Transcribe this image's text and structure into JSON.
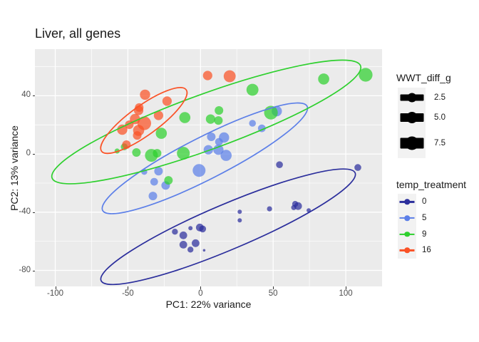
{
  "title": "Liver, all genes",
  "panel": {
    "bg": "#EBEBEB",
    "grid_color": "#FFFFFF"
  },
  "axes": {
    "x": {
      "title": "PC1: 22% variance",
      "tick_labels": [
        "-100",
        "-50",
        "0",
        "50",
        "100"
      ],
      "tick_values": [
        -100,
        -50,
        0,
        50,
        100
      ],
      "minor_values": [
        -75,
        -25,
        25,
        75
      ]
    },
    "y": {
      "title": "PC2: 13% variance",
      "tick_labels": [
        "-80",
        "-40",
        "0",
        "40"
      ],
      "tick_values": [
        -80,
        -40,
        0,
        40
      ],
      "minor_values": [
        -60,
        -20,
        20,
        60
      ]
    }
  },
  "legends": {
    "size": {
      "title": "WWT_diff_g",
      "entries": [
        {
          "label": "2.5",
          "value": 2.5
        },
        {
          "label": "5.0",
          "value": 5.0
        },
        {
          "label": "7.5",
          "value": 7.5
        }
      ]
    },
    "color": {
      "title": "temp_treatment",
      "entries": [
        {
          "label": "0",
          "color": "#2B2E9C"
        },
        {
          "label": "5",
          "color": "#5C7FE8"
        },
        {
          "label": "9",
          "color": "#2ED02E"
        },
        {
          "label": "16",
          "color": "#FA5226"
        }
      ]
    }
  },
  "chart_data": {
    "type": "scatter",
    "title": "Liver, all genes",
    "xlabel": "PC1: 22% variance",
    "ylabel": "PC2: 13% variance",
    "xlim": [
      -114,
      125
    ],
    "ylim": [
      -91,
      72
    ],
    "grid": true,
    "legend_position": "right",
    "size_variable": "WWT_diff_g",
    "size_values_shown": [
      2.5,
      5.0,
      7.5
    ],
    "color_variable": "temp_treatment",
    "point_alpha": 0.72,
    "series": [
      {
        "name": "0",
        "color": "#2B2E9C",
        "ellipse": {
          "cx": 19,
          "cy": -50,
          "rx": 95,
          "ry": 15.5,
          "rot": -23
        },
        "points": [
          [
            54.4,
            -7.4,
            4
          ],
          [
            108.3,
            -9.3,
            4
          ],
          [
            27.0,
            -39.7,
            2.5
          ],
          [
            27.0,
            -45.6,
            2.5
          ],
          [
            47.5,
            -37.7,
            3
          ],
          [
            64.2,
            -36.8,
            3
          ],
          [
            65.2,
            -34.3,
            3.5
          ],
          [
            67.2,
            -35.8,
            4.5
          ],
          [
            74.5,
            -38.7,
            2.5
          ],
          [
            -17.6,
            -53.4,
            3.5
          ],
          [
            -11.8,
            -55.9,
            4.5
          ],
          [
            -6.9,
            -51.0,
            2.5
          ],
          [
            -0.5,
            -50.5,
            4.5
          ],
          [
            1.5,
            -51.5,
            4
          ],
          [
            -11.8,
            -62.3,
            4.5
          ],
          [
            -6.9,
            -65.7,
            3.5
          ],
          [
            -3.4,
            -61.3,
            4.5
          ],
          [
            2.5,
            -66.2,
            1.5
          ]
        ]
      },
      {
        "name": "5",
        "color": "#5C7FE8",
        "ellipse": {
          "cx": 3,
          "cy": -3,
          "rx": 79,
          "ry": 14.5,
          "rot": -27
        },
        "points": [
          [
            52.5,
            29.4,
            6
          ],
          [
            35.8,
            21.1,
            4
          ],
          [
            42.2,
            17.6,
            4.5
          ],
          [
            12.7,
            8.3,
            4.5
          ],
          [
            7.4,
            11.8,
            5
          ],
          [
            16.2,
            11.3,
            6
          ],
          [
            5.4,
            2.9,
            5.5
          ],
          [
            12.3,
            2.9,
            6
          ],
          [
            17.6,
            -1.0,
            6.5
          ],
          [
            -1.0,
            -11.3,
            7.5
          ],
          [
            -28.9,
            -11.8,
            5
          ],
          [
            -38.7,
            -12.3,
            3.5
          ],
          [
            -31.9,
            -19.1,
            4.5
          ],
          [
            -24.0,
            -21.6,
            5
          ],
          [
            -32.8,
            -28.9,
            5
          ]
        ]
      },
      {
        "name": "9",
        "color": "#2ED02E",
        "ellipse": {
          "cx": 4,
          "cy": 22,
          "rx": 113,
          "ry": 19,
          "rot": -20
        },
        "points": [
          [
            84.8,
            51.5,
            6.5
          ],
          [
            113.7,
            54.4,
            8
          ],
          [
            35.8,
            44.1,
            7
          ],
          [
            -10.8,
            25.0,
            6.5
          ],
          [
            12.7,
            29.9,
            5
          ],
          [
            6.9,
            24.0,
            5.5
          ],
          [
            12.3,
            23.0,
            5
          ],
          [
            48.5,
            28.4,
            8
          ],
          [
            -27.0,
            14.2,
            6.5
          ],
          [
            -52.5,
            4.9,
            4
          ],
          [
            -57.4,
            2.0,
            3
          ],
          [
            -44.1,
            1.0,
            5
          ],
          [
            -33.8,
            -1.0,
            7.5
          ],
          [
            -29.9,
            0.5,
            5
          ],
          [
            -11.8,
            0.5,
            7.5
          ],
          [
            -22.1,
            -18.1,
            5
          ]
        ]
      },
      {
        "name": "16",
        "color": "#FA5226",
        "ellipse": {
          "cx": -39,
          "cy": 23,
          "rx": 36,
          "ry": 10,
          "rot": -36
        },
        "points": [
          [
            4.9,
            53.9,
            5.5
          ],
          [
            20.1,
            53.4,
            7
          ],
          [
            -38.2,
            40.7,
            6
          ],
          [
            -42.2,
            31.9,
            5
          ],
          [
            -23.0,
            36.3,
            5.5
          ],
          [
            -28.9,
            26.5,
            5.5
          ],
          [
            -42.6,
            29.9,
            5.5
          ],
          [
            -45.1,
            24.0,
            6
          ],
          [
            -38.7,
            21.1,
            8
          ],
          [
            -49.0,
            20.1,
            5
          ],
          [
            -53.9,
            16.7,
            6
          ],
          [
            -42.6,
            16.2,
            6.5
          ],
          [
            -43.6,
            12.7,
            5
          ],
          [
            -51.0,
            6.4,
            5
          ]
        ]
      }
    ]
  }
}
